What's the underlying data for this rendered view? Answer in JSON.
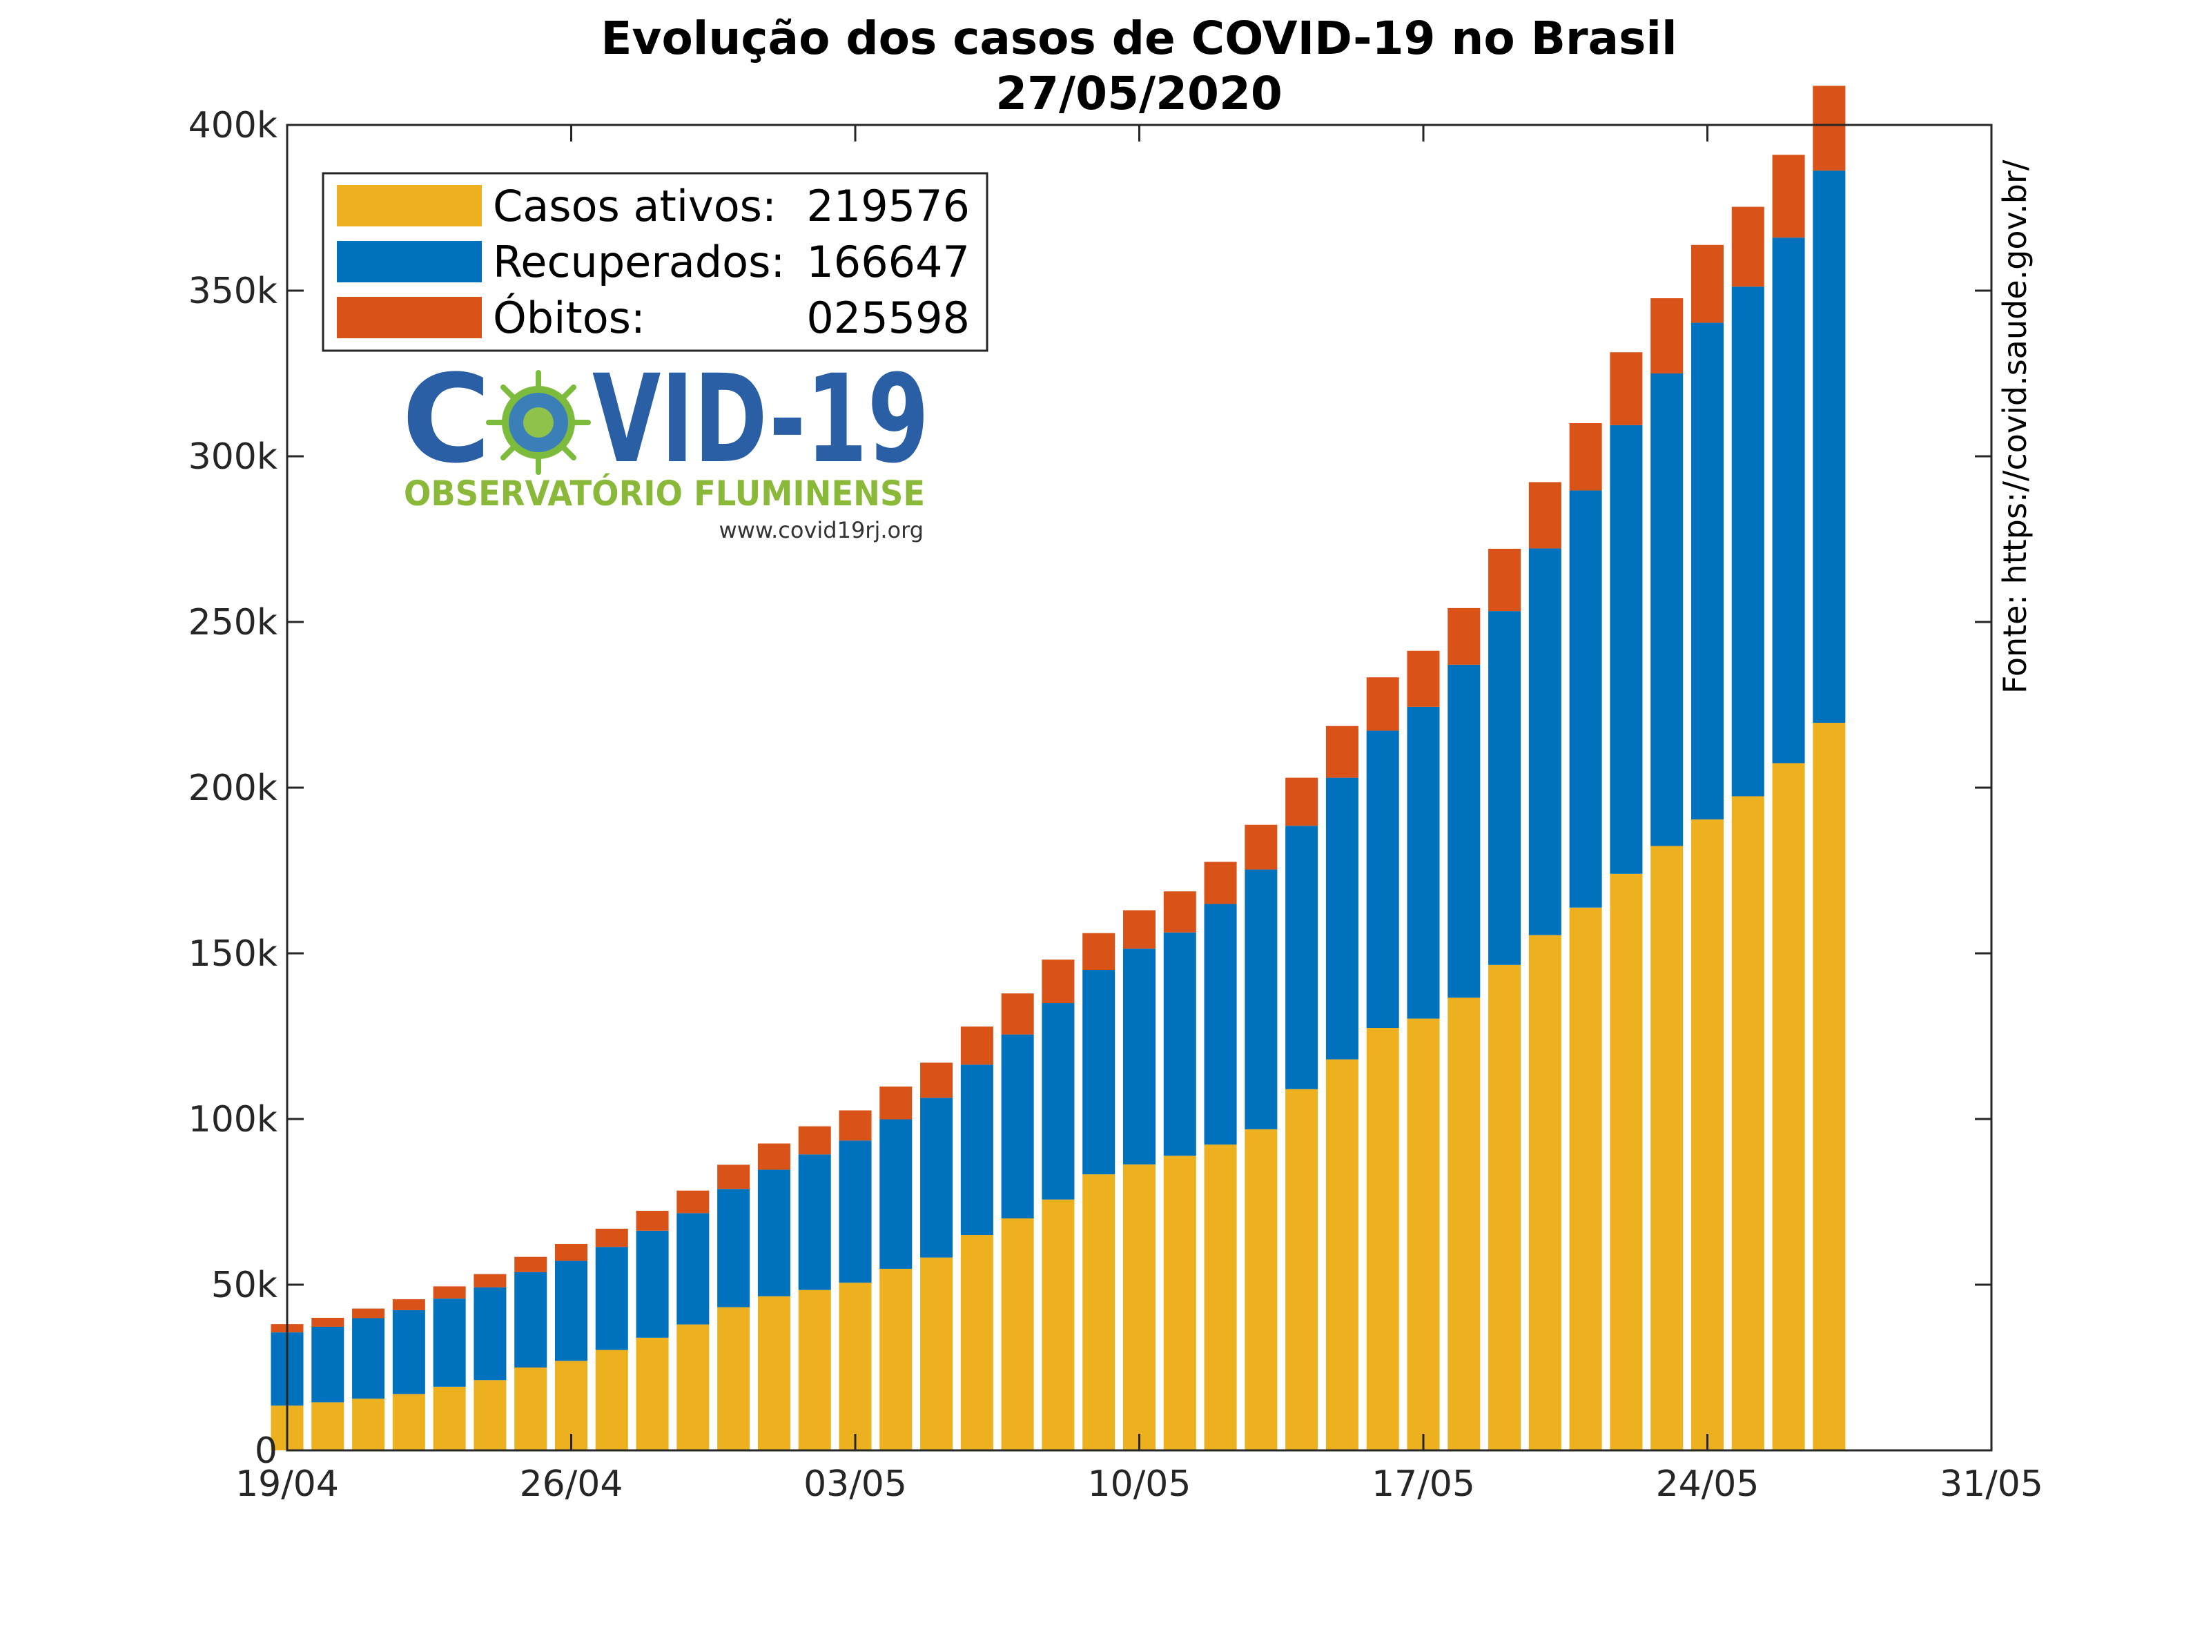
{
  "title_line1": "Evolução dos casos de COVID-19 no Brasil",
  "title_line2": "27/05/2020",
  "source_text": "Fonte: https://covid.saude.gov.br/",
  "logo": {
    "wordmark_left": "C",
    "wordmark_right": "VID-19",
    "subtitle": "OBSERVATÓRIO FLUMINENSE",
    "url": "www.covid19rj.org"
  },
  "colors": {
    "ativos": "#EDB120",
    "recuperados": "#0072BD",
    "obitos": "#D95319"
  },
  "legend": [
    {
      "key": "ativos",
      "label": "Casos ativos:",
      "value": "219576"
    },
    {
      "key": "recuperados",
      "label": "Recuperados:",
      "value": "166647"
    },
    {
      "key": "obitos",
      "label": "Óbitos:",
      "value": "025598"
    }
  ],
  "chart_data": {
    "type": "bar",
    "stacked": true,
    "x_start": "19/04",
    "x_tick_labels": [
      "19/04",
      "26/04",
      "03/05",
      "10/05",
      "17/05",
      "24/05",
      "31/05"
    ],
    "x_tick_day_offsets": [
      0,
      7,
      14,
      21,
      28,
      35,
      42
    ],
    "xlim_days": [
      0,
      42
    ],
    "y_tick_labels": [
      "0",
      "50k",
      "100k",
      "150k",
      "200k",
      "250k",
      "300k",
      "350k",
      "400k"
    ],
    "y_tick_values": [
      0,
      50000,
      100000,
      150000,
      200000,
      250000,
      300000,
      350000,
      400000
    ],
    "ylim": [
      0,
      400000
    ],
    "legend_position": "top-left",
    "series": [
      {
        "name": "Casos ativos",
        "key": "ativos",
        "values": [
          13500,
          14500,
          15600,
          17000,
          19200,
          21200,
          25000,
          27000,
          30300,
          34000,
          38000,
          43200,
          46500,
          48400,
          50600,
          54800,
          58200,
          65000,
          70000,
          75700,
          83300,
          86300,
          88900,
          92300,
          96900,
          109000,
          118000,
          127500,
          130300,
          136600,
          146500,
          155500,
          163800,
          174000,
          182400,
          190400,
          197400,
          207400,
          219576
        ]
      },
      {
        "name": "Recuperados",
        "key": "recuperados",
        "values": [
          22100,
          22800,
          24300,
          25300,
          26600,
          28000,
          28800,
          30200,
          31100,
          32300,
          33600,
          35700,
          38200,
          40900,
          42900,
          45100,
          48200,
          51400,
          55500,
          59300,
          61700,
          65100,
          67400,
          72600,
          78400,
          79500,
          85000,
          89700,
          94100,
          100500,
          106800,
          116700,
          125900,
          135400,
          142600,
          149900,
          153800,
          158600,
          166647
        ]
      },
      {
        "name": "Óbitos",
        "key": "obitos",
        "values": [
          2500,
          2700,
          2900,
          3300,
          3700,
          4000,
          4600,
          5100,
          5500,
          6000,
          6800,
          7300,
          7900,
          8500,
          9100,
          9900,
          10600,
          11500,
          12400,
          13100,
          11100,
          11600,
          12400,
          12700,
          13500,
          14500,
          15600,
          16100,
          16900,
          17100,
          18800,
          20000,
          20300,
          22000,
          22700,
          23500,
          24100,
          25000,
          25598
        ]
      }
    ]
  }
}
